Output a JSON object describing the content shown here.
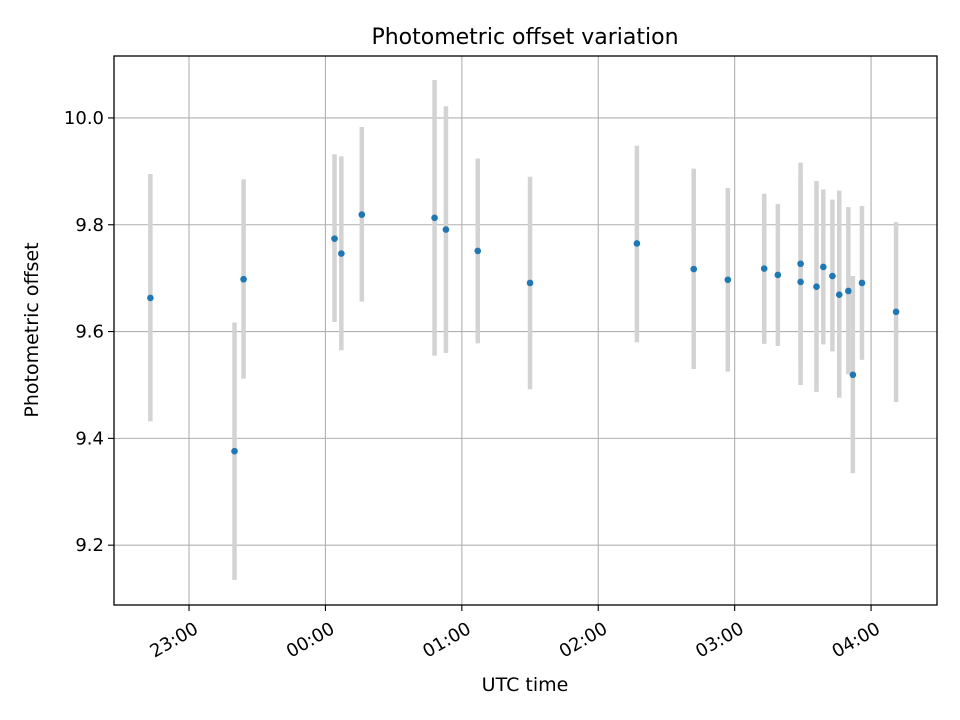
{
  "chart_data": {
    "type": "scatter",
    "title": "Photometric offset variation",
    "xlabel": "UTC time",
    "ylabel": "Photometric offset",
    "x_axis": "time",
    "xlim": [
      "22:27",
      "04:29"
    ],
    "ylim": [
      9.088,
      10.116
    ],
    "x_ticks": [
      "23:00",
      "00:00",
      "01:00",
      "02:00",
      "03:00",
      "04:00"
    ],
    "y_ticks": [
      "9.2",
      "9.4",
      "9.6",
      "9.8",
      "10.0"
    ],
    "grid": true,
    "marker_color": "#1f77b4",
    "errorbar_color": "#d3d3d3",
    "points": [
      {
        "t": "22:43",
        "y": 9.663,
        "lo": 9.432,
        "hi": 9.895
      },
      {
        "t": "23:20",
        "y": 9.376,
        "lo": 9.135,
        "hi": 9.617
      },
      {
        "t": "23:24",
        "y": 9.698,
        "lo": 9.512,
        "hi": 9.885
      },
      {
        "t": "00:04",
        "y": 9.774,
        "lo": 9.618,
        "hi": 9.932
      },
      {
        "t": "00:07",
        "y": 9.746,
        "lo": 9.565,
        "hi": 9.928
      },
      {
        "t": "00:16",
        "y": 9.819,
        "lo": 9.656,
        "hi": 9.983
      },
      {
        "t": "00:48",
        "y": 9.813,
        "lo": 9.555,
        "hi": 10.071
      },
      {
        "t": "00:53",
        "y": 9.791,
        "lo": 9.56,
        "hi": 10.022
      },
      {
        "t": "01:07",
        "y": 9.751,
        "lo": 9.578,
        "hi": 9.924
      },
      {
        "t": "01:30",
        "y": 9.691,
        "lo": 9.492,
        "hi": 9.89
      },
      {
        "t": "02:17",
        "y": 9.765,
        "lo": 9.58,
        "hi": 9.948
      },
      {
        "t": "02:42",
        "y": 9.717,
        "lo": 9.53,
        "hi": 9.905
      },
      {
        "t": "02:57",
        "y": 9.697,
        "lo": 9.525,
        "hi": 9.869
      },
      {
        "t": "03:13",
        "y": 9.718,
        "lo": 9.577,
        "hi": 9.858
      },
      {
        "t": "03:19",
        "y": 9.706,
        "lo": 9.573,
        "hi": 9.839
      },
      {
        "t": "03:29",
        "y": 9.727,
        "lo": 9.54,
        "hi": 9.916
      },
      {
        "t": "03:29",
        "y": 9.693,
        "lo": 9.5,
        "hi": 9.886
      },
      {
        "t": "03:36",
        "y": 9.684,
        "lo": 9.487,
        "hi": 9.882
      },
      {
        "t": "03:39",
        "y": 9.721,
        "lo": 9.576,
        "hi": 9.866
      },
      {
        "t": "03:43",
        "y": 9.704,
        "lo": 9.563,
        "hi": 9.847
      },
      {
        "t": "03:46",
        "y": 9.669,
        "lo": 9.476,
        "hi": 9.864
      },
      {
        "t": "03:50",
        "y": 9.676,
        "lo": 9.52,
        "hi": 9.833
      },
      {
        "t": "03:52",
        "y": 9.519,
        "lo": 9.335,
        "hi": 9.704
      },
      {
        "t": "03:56",
        "y": 9.691,
        "lo": 9.547,
        "hi": 9.835
      },
      {
        "t": "04:11",
        "y": 9.637,
        "lo": 9.468,
        "hi": 9.805
      }
    ]
  }
}
